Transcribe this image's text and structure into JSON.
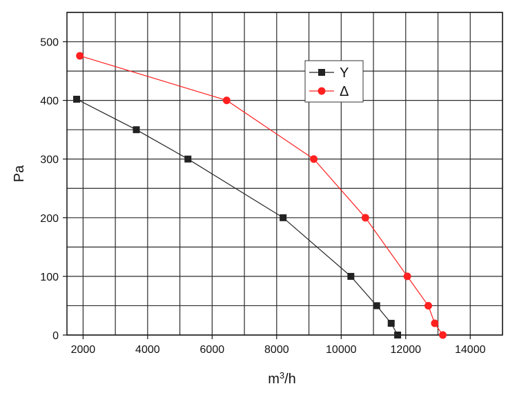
{
  "chart_data": {
    "type": "line",
    "title": "",
    "xlabel_base": "m",
    "xlabel_sup": "3",
    "xlabel_tail": "/h",
    "ylabel": "Pa",
    "xlim": [
      1500,
      15000
    ],
    "ylim": [
      0,
      550
    ],
    "x_ticks": [
      2000,
      4000,
      6000,
      8000,
      10000,
      12000,
      14000
    ],
    "x_tick_labels": [
      "2000",
      "4000",
      "6000",
      "8000",
      "10000",
      "12000",
      "14000"
    ],
    "y_ticks": [
      0,
      100,
      200,
      300,
      400,
      500
    ],
    "y_tick_labels": [
      "0",
      "100",
      "200",
      "300",
      "400",
      "500"
    ],
    "x_grid_step": 1000,
    "y_grid_step": 50,
    "grid": true,
    "legend_position": "top-right",
    "series": [
      {
        "name": "Y",
        "color": "#222222",
        "marker": "square",
        "x": [
          1800,
          3650,
          5250,
          8200,
          10300,
          11100,
          11550,
          11750
        ],
        "y": [
          402,
          350,
          300,
          200,
          100,
          50,
          20,
          0
        ]
      },
      {
        "name": "Δ",
        "color": "#ff2020",
        "marker": "circle",
        "x": [
          1900,
          6450,
          9150,
          10750,
          12050,
          12700,
          12900,
          13150
        ],
        "y": [
          476,
          400,
          300,
          200,
          100,
          50,
          20,
          0
        ]
      }
    ]
  }
}
